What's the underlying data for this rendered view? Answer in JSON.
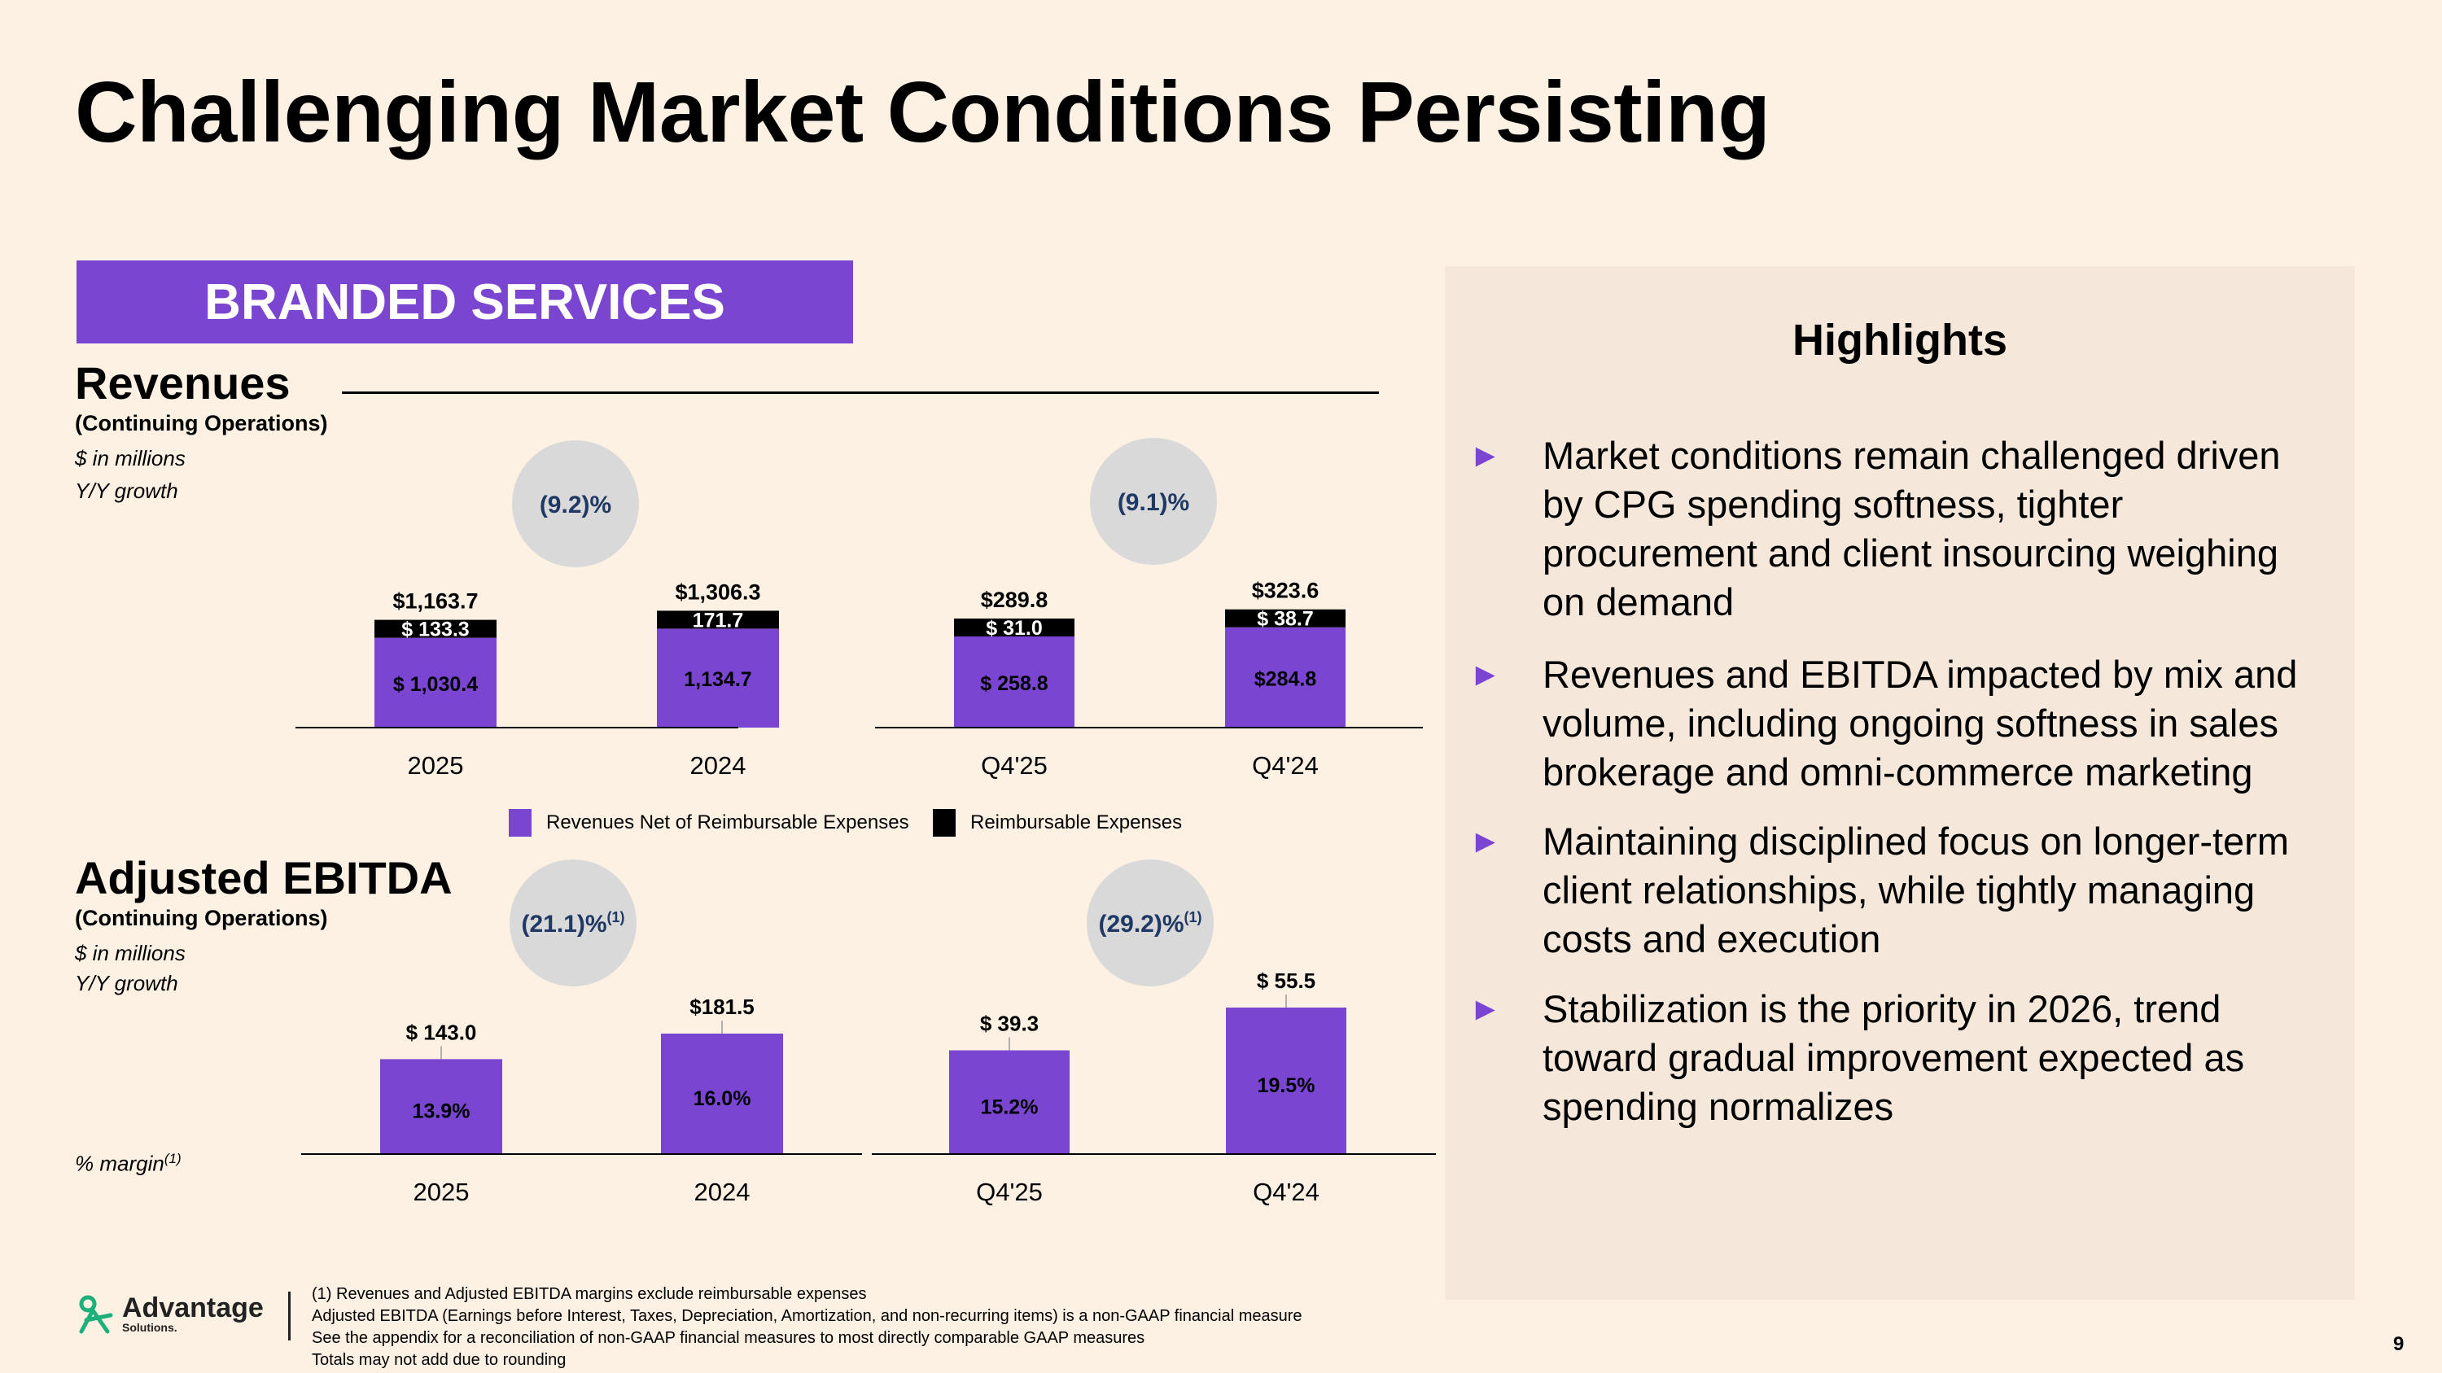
{
  "title": "Challenging Market Conditions Persisting",
  "segment": "BRANDED SERVICES",
  "colors": {
    "accent": "#7a45d0",
    "reimbursable": "#000000",
    "bubble": "#d9d9d9",
    "background": "#fdf1e3",
    "panel": "#f5e8da"
  },
  "revenues": {
    "title": "Revenues",
    "subtitle": "(Continuing Operations)",
    "unit_note": "$ in millions",
    "growth_note": "Y/Y growth"
  },
  "ebitda": {
    "title": "Adjusted EBITDA",
    "subtitle": "(Continuing Operations)",
    "unit_note": "$ in millions",
    "growth_note": "Y/Y growth",
    "margin_note": "% margin",
    "margin_sup": "(1)"
  },
  "legend": {
    "net": "Revenues Net of Reimbursable Expenses",
    "reimb": "Reimbursable Expenses"
  },
  "chart_data": [
    {
      "id": "rev_annual",
      "type": "bar",
      "stacked": true,
      "title": "Revenues (Continuing Operations)",
      "categories": [
        "2025",
        "2024"
      ],
      "series": [
        {
          "name": "Revenues Net of Reimbursable Expenses",
          "values": [
            1030.4,
            1134.7
          ],
          "labels": [
            "$ 1,030.4",
            "1,134.7"
          ]
        },
        {
          "name": "Reimbursable Expenses",
          "values": [
            133.3,
            171.7
          ],
          "labels": [
            "$ 133.3",
            "171.7"
          ]
        }
      ],
      "totals": [
        "$1,163.7",
        "$1,306.3"
      ],
      "growth": "(9.2)%",
      "ylim": [
        0,
        1400
      ]
    },
    {
      "id": "rev_quarter",
      "type": "bar",
      "stacked": true,
      "title": "Revenues (Continuing Operations)",
      "categories": [
        "Q4'25",
        "Q4'24"
      ],
      "series": [
        {
          "name": "Revenues Net of Reimbursable Expenses",
          "values": [
            258.8,
            284.8
          ],
          "labels": [
            "$ 258.8",
            "$284.8"
          ]
        },
        {
          "name": "Reimbursable Expenses",
          "values": [
            31.0,
            38.7
          ],
          "labels": [
            "$ 31.0",
            "$ 38.7"
          ]
        }
      ],
      "totals": [
        "$289.8",
        "$323.6"
      ],
      "growth": "(9.1)%",
      "ylim": [
        0,
        400
      ]
    },
    {
      "id": "ebitda_annual",
      "type": "bar",
      "title": "Adjusted EBITDA (Continuing Operations)",
      "categories": [
        "2025",
        "2024"
      ],
      "values": [
        143.0,
        181.5
      ],
      "value_labels": [
        "$ 143.0",
        "$181.5"
      ],
      "margins": [
        "13.9%",
        "16.0%"
      ],
      "growth": "(21.1)%",
      "growth_sup": "(1)",
      "ylim": [
        0,
        190
      ]
    },
    {
      "id": "ebitda_quarter",
      "type": "bar",
      "title": "Adjusted EBITDA (Continuing Operations)",
      "categories": [
        "Q4'25",
        "Q4'24"
      ],
      "values": [
        39.3,
        55.5
      ],
      "value_labels": [
        "$ 39.3",
        "$ 55.5"
      ],
      "margins": [
        "15.2%",
        "19.5%"
      ],
      "growth": "(29.2)%",
      "growth_sup": "(1)",
      "ylim": [
        0,
        58
      ]
    }
  ],
  "highlights": {
    "title": "Highlights",
    "bullet_glyph": "►",
    "items": [
      {
        "lines": [
          "Market conditions remain challenged driven",
          "by CPG spending softness, tighter",
          "procurement and client insourcing weighing",
          "on demand"
        ]
      },
      {
        "lines": [
          "Revenues and EBITDA impacted by mix and",
          "volume, including ongoing softness in sales",
          "brokerage and omni-commerce marketing"
        ]
      },
      {
        "lines": [
          "Maintaining disciplined focus on longer-term",
          "client relationships, while tightly managing",
          "costs and execution"
        ]
      },
      {
        "lines": [
          "Stabilization is the priority in 2026, trend",
          "toward gradual improvement expected as",
          "spending normalizes"
        ]
      }
    ]
  },
  "footnotes": [
    "(1) Revenues and Adjusted EBITDA margins exclude reimbursable expenses",
    "Adjusted EBITDA (Earnings before Interest, Taxes, Depreciation, Amortization, and non-recurring items) is a non-GAAP financial measure",
    "See the appendix for a reconciliation of non-GAAP financial measures to most directly comparable GAAP measures",
    "Totals may not add due to rounding"
  ],
  "logo": {
    "name": "Advantage",
    "sub": "Solutions.",
    "icon": "advantage-logo-icon"
  },
  "page_number": "9"
}
